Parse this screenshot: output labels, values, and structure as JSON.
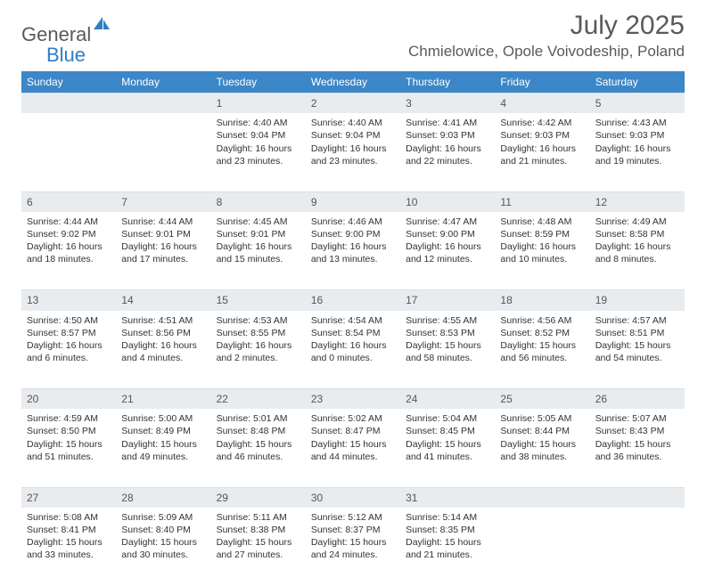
{
  "brand": {
    "word1": "General",
    "word2": "Blue"
  },
  "title": "July 2025",
  "location": "Chmielowice, Opole Voivodeship, Poland",
  "colors": {
    "header_bg": "#3b87c8",
    "header_text": "#ffffff",
    "daynum_bg": "#e9ecef",
    "text": "#333333",
    "brand_gray": "#5a5a5a",
    "brand_blue": "#2f7fc1"
  },
  "weekdays": [
    "Sunday",
    "Monday",
    "Tuesday",
    "Wednesday",
    "Thursday",
    "Friday",
    "Saturday"
  ],
  "weeks": [
    [
      {
        "n": "",
        "lines": []
      },
      {
        "n": "",
        "lines": []
      },
      {
        "n": "1",
        "lines": [
          "Sunrise: 4:40 AM",
          "Sunset: 9:04 PM",
          "Daylight: 16 hours",
          "and 23 minutes."
        ]
      },
      {
        "n": "2",
        "lines": [
          "Sunrise: 4:40 AM",
          "Sunset: 9:04 PM",
          "Daylight: 16 hours",
          "and 23 minutes."
        ]
      },
      {
        "n": "3",
        "lines": [
          "Sunrise: 4:41 AM",
          "Sunset: 9:03 PM",
          "Daylight: 16 hours",
          "and 22 minutes."
        ]
      },
      {
        "n": "4",
        "lines": [
          "Sunrise: 4:42 AM",
          "Sunset: 9:03 PM",
          "Daylight: 16 hours",
          "and 21 minutes."
        ]
      },
      {
        "n": "5",
        "lines": [
          "Sunrise: 4:43 AM",
          "Sunset: 9:03 PM",
          "Daylight: 16 hours",
          "and 19 minutes."
        ]
      }
    ],
    [
      {
        "n": "6",
        "lines": [
          "Sunrise: 4:44 AM",
          "Sunset: 9:02 PM",
          "Daylight: 16 hours",
          "and 18 minutes."
        ]
      },
      {
        "n": "7",
        "lines": [
          "Sunrise: 4:44 AM",
          "Sunset: 9:01 PM",
          "Daylight: 16 hours",
          "and 17 minutes."
        ]
      },
      {
        "n": "8",
        "lines": [
          "Sunrise: 4:45 AM",
          "Sunset: 9:01 PM",
          "Daylight: 16 hours",
          "and 15 minutes."
        ]
      },
      {
        "n": "9",
        "lines": [
          "Sunrise: 4:46 AM",
          "Sunset: 9:00 PM",
          "Daylight: 16 hours",
          "and 13 minutes."
        ]
      },
      {
        "n": "10",
        "lines": [
          "Sunrise: 4:47 AM",
          "Sunset: 9:00 PM",
          "Daylight: 16 hours",
          "and 12 minutes."
        ]
      },
      {
        "n": "11",
        "lines": [
          "Sunrise: 4:48 AM",
          "Sunset: 8:59 PM",
          "Daylight: 16 hours",
          "and 10 minutes."
        ]
      },
      {
        "n": "12",
        "lines": [
          "Sunrise: 4:49 AM",
          "Sunset: 8:58 PM",
          "Daylight: 16 hours",
          "and 8 minutes."
        ]
      }
    ],
    [
      {
        "n": "13",
        "lines": [
          "Sunrise: 4:50 AM",
          "Sunset: 8:57 PM",
          "Daylight: 16 hours",
          "and 6 minutes."
        ]
      },
      {
        "n": "14",
        "lines": [
          "Sunrise: 4:51 AM",
          "Sunset: 8:56 PM",
          "Daylight: 16 hours",
          "and 4 minutes."
        ]
      },
      {
        "n": "15",
        "lines": [
          "Sunrise: 4:53 AM",
          "Sunset: 8:55 PM",
          "Daylight: 16 hours",
          "and 2 minutes."
        ]
      },
      {
        "n": "16",
        "lines": [
          "Sunrise: 4:54 AM",
          "Sunset: 8:54 PM",
          "Daylight: 16 hours",
          "and 0 minutes."
        ]
      },
      {
        "n": "17",
        "lines": [
          "Sunrise: 4:55 AM",
          "Sunset: 8:53 PM",
          "Daylight: 15 hours",
          "and 58 minutes."
        ]
      },
      {
        "n": "18",
        "lines": [
          "Sunrise: 4:56 AM",
          "Sunset: 8:52 PM",
          "Daylight: 15 hours",
          "and 56 minutes."
        ]
      },
      {
        "n": "19",
        "lines": [
          "Sunrise: 4:57 AM",
          "Sunset: 8:51 PM",
          "Daylight: 15 hours",
          "and 54 minutes."
        ]
      }
    ],
    [
      {
        "n": "20",
        "lines": [
          "Sunrise: 4:59 AM",
          "Sunset: 8:50 PM",
          "Daylight: 15 hours",
          "and 51 minutes."
        ]
      },
      {
        "n": "21",
        "lines": [
          "Sunrise: 5:00 AM",
          "Sunset: 8:49 PM",
          "Daylight: 15 hours",
          "and 49 minutes."
        ]
      },
      {
        "n": "22",
        "lines": [
          "Sunrise: 5:01 AM",
          "Sunset: 8:48 PM",
          "Daylight: 15 hours",
          "and 46 minutes."
        ]
      },
      {
        "n": "23",
        "lines": [
          "Sunrise: 5:02 AM",
          "Sunset: 8:47 PM",
          "Daylight: 15 hours",
          "and 44 minutes."
        ]
      },
      {
        "n": "24",
        "lines": [
          "Sunrise: 5:04 AM",
          "Sunset: 8:45 PM",
          "Daylight: 15 hours",
          "and 41 minutes."
        ]
      },
      {
        "n": "25",
        "lines": [
          "Sunrise: 5:05 AM",
          "Sunset: 8:44 PM",
          "Daylight: 15 hours",
          "and 38 minutes."
        ]
      },
      {
        "n": "26",
        "lines": [
          "Sunrise: 5:07 AM",
          "Sunset: 8:43 PM",
          "Daylight: 15 hours",
          "and 36 minutes."
        ]
      }
    ],
    [
      {
        "n": "27",
        "lines": [
          "Sunrise: 5:08 AM",
          "Sunset: 8:41 PM",
          "Daylight: 15 hours",
          "and 33 minutes."
        ]
      },
      {
        "n": "28",
        "lines": [
          "Sunrise: 5:09 AM",
          "Sunset: 8:40 PM",
          "Daylight: 15 hours",
          "and 30 minutes."
        ]
      },
      {
        "n": "29",
        "lines": [
          "Sunrise: 5:11 AM",
          "Sunset: 8:38 PM",
          "Daylight: 15 hours",
          "and 27 minutes."
        ]
      },
      {
        "n": "30",
        "lines": [
          "Sunrise: 5:12 AM",
          "Sunset: 8:37 PM",
          "Daylight: 15 hours",
          "and 24 minutes."
        ]
      },
      {
        "n": "31",
        "lines": [
          "Sunrise: 5:14 AM",
          "Sunset: 8:35 PM",
          "Daylight: 15 hours",
          "and 21 minutes."
        ]
      },
      {
        "n": "",
        "lines": []
      },
      {
        "n": "",
        "lines": []
      }
    ]
  ]
}
